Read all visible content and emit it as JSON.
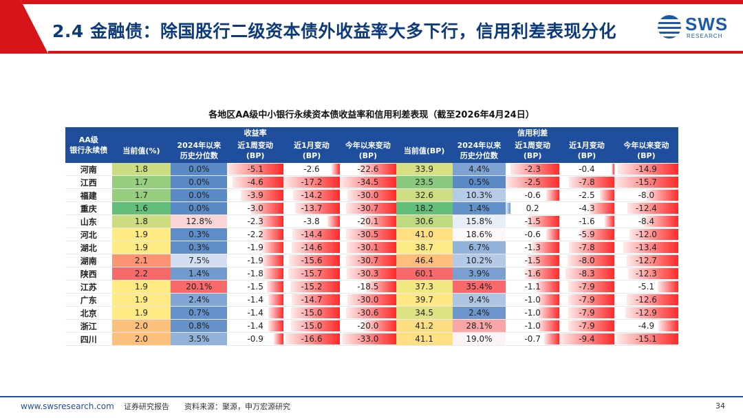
{
  "header": {
    "title": "2.4 金融债：除国股行二级资本债外收益率大多下行，信用利差表现分化",
    "logo_text": "SWS",
    "logo_sub": "RESEARCH"
  },
  "table": {
    "title": "各地区AA级中小银行永续资本债收益率和信用利差表现（截至2026年4月24日）",
    "group_yield": "收益率",
    "group_spread": "信用利差",
    "col_region": "AA级\n银行永续债",
    "col_current_pct": "当前值(%)",
    "col_hist_pct": "2024年以来\n历史分位数",
    "col_1w": "近1周变动\n(BP)",
    "col_1m": "近1月变动\n(BP)",
    "col_ytd": "今年以来变动\n(BP)",
    "col_current_bp": "当前值(BP)",
    "col_hist_pct2": "2024年以来\n历史分位数",
    "col_1w2": "近1周变动\n(BP)",
    "col_1m2": "近1月变动\n(BP)",
    "col_ytd2": "今年以来变动\n(BP)",
    "rows": [
      [
        "河南",
        "1.8",
        "0.0%",
        "-5.1",
        "-2.6",
        "-22.6",
        "33.9",
        "4.4%",
        "-2.3",
        "-0.4",
        "-14.9"
      ],
      [
        "江西",
        "1.7",
        "0.0%",
        "-4.6",
        "-17.2",
        "-34.5",
        "23.5",
        "0.5%",
        "-2.5",
        "-7.8",
        "-15.7"
      ],
      [
        "福建",
        "1.7",
        "0.0%",
        "-3.9",
        "-14.2",
        "-30.0",
        "32.6",
        "10.3%",
        "-0.6",
        "-2.5",
        "-8.0"
      ],
      [
        "重庆",
        "1.6",
        "0.0%",
        "-3.0",
        "-13.7",
        "-30.7",
        "18.2",
        "1.4%",
        "0.2",
        "-4.3",
        "-12.4"
      ],
      [
        "山东",
        "1.8",
        "12.8%",
        "-2.3",
        "-3.8",
        "-20.1",
        "30.6",
        "15.8%",
        "-1.5",
        "-1.6",
        "-8.4"
      ],
      [
        "河北",
        "1.9",
        "0.3%",
        "-2.2",
        "-14.4",
        "-30.5",
        "41.0",
        "18.6%",
        "-0.6",
        "-5.9",
        "-12.0"
      ],
      [
        "湖北",
        "1.9",
        "0.3%",
        "-1.9",
        "-14.6",
        "-30.1",
        "38.7",
        "6.7%",
        "-1.3",
        "-7.8",
        "-13.4"
      ],
      [
        "湖南",
        "2.1",
        "7.5%",
        "-1.9",
        "-15.6",
        "-30.7",
        "46.4",
        "10.2%",
        "-1.5",
        "-8.0",
        "-12.7"
      ],
      [
        "陕西",
        "2.2",
        "1.4%",
        "-1.8",
        "-15.7",
        "-30.3",
        "60.1",
        "3.9%",
        "-1.6",
        "-8.3",
        "-12.3"
      ],
      [
        "江苏",
        "1.9",
        "20.1%",
        "-1.5",
        "-15.2",
        "-18.5",
        "37.3",
        "35.4%",
        "-1.1",
        "-7.9",
        "-5.1"
      ],
      [
        "广东",
        "1.9",
        "2.4%",
        "-1.4",
        "-14.7",
        "-30.0",
        "39.7",
        "9.4%",
        "-1.0",
        "-7.9",
        "-12.6"
      ],
      [
        "北京",
        "1.9",
        "0.7%",
        "-1.4",
        "-15.0",
        "-30.6",
        "34.5",
        "2.4%",
        "-1.0",
        "-7.9",
        "-12.9"
      ],
      [
        "浙江",
        "2.0",
        "0.8%",
        "-1.4",
        "-15.0",
        "-20.0",
        "41.2",
        "28.1%",
        "-1.0",
        "-7.9",
        "-4.9"
      ],
      [
        "四川",
        "2.0",
        "3.5%",
        "-0.9",
        "-16.6",
        "-33.0",
        "41.1",
        "19.0%",
        "-0.7",
        "-9.4",
        "-15.1"
      ]
    ]
  },
  "footer": {
    "url": "www.swsresearch.com",
    "doc_type": "证券研究报告",
    "source": "资料来源：聚源，申万宏源研究",
    "page": "34"
  },
  "colors": {
    "brand_blue": "#1f4e9c",
    "header_red": "#d7141a"
  }
}
